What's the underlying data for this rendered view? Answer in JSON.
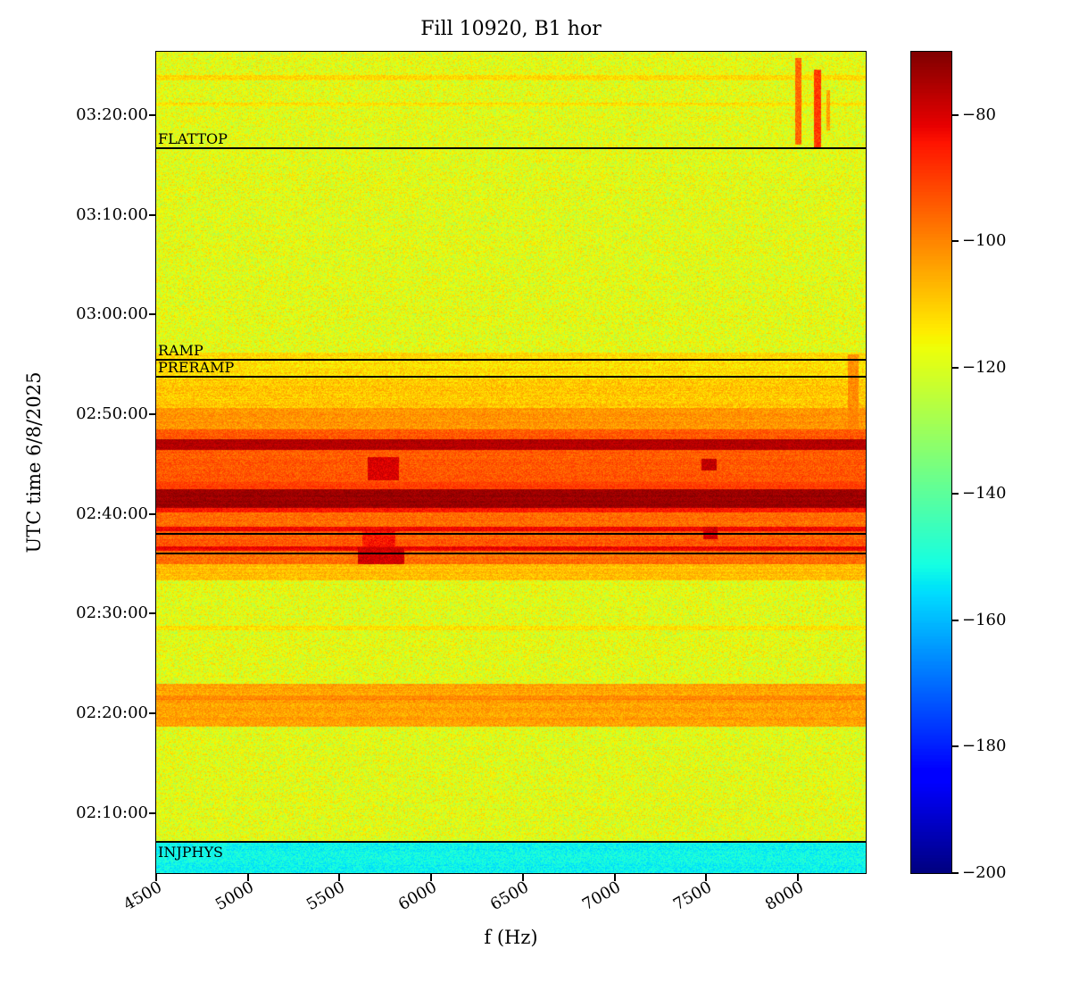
{
  "chart_data": {
    "type": "heatmap",
    "subtype": "spectrogram",
    "title": "Fill 10920, B1 hor",
    "xlabel": "f (Hz)",
    "ylabel": "UTC time 6/8/2025",
    "colormap": "jet",
    "x_axis": {
      "min": 4500,
      "max": 8370,
      "ticks": [
        4500,
        5000,
        5500,
        6000,
        6500,
        7000,
        7500,
        8000
      ]
    },
    "y_axis": {
      "min_time": "02:04:00",
      "max_time": "03:26:20",
      "ticks": [
        "02:10:00",
        "02:20:00",
        "02:30:00",
        "02:40:00",
        "02:50:00",
        "03:00:00",
        "03:10:00",
        "03:20:00"
      ]
    },
    "colorbar": {
      "vmin": -200,
      "vmax": -70,
      "ticks": [
        -80,
        -100,
        -120,
        -140,
        -160,
        -180,
        -200
      ]
    },
    "annotations": [
      {
        "label": "FLATTOP",
        "time": "03:16:40",
        "label_position": "above"
      },
      {
        "label": "RAMP",
        "time": "02:55:30",
        "label_position": "above"
      },
      {
        "label": "PRERAMP",
        "time": "02:53:45",
        "label_position": "above"
      },
      {
        "label": "",
        "time": "02:38:00",
        "label_position": "above"
      },
      {
        "label": "",
        "time": "02:36:00",
        "label_position": "above"
      },
      {
        "label": "INJPHYS",
        "time": "02:07:10",
        "label_position": "below"
      }
    ],
    "bands": [
      {
        "t0": "02:04:00",
        "t1": "03:26:20",
        "db": -119,
        "noise": 9
      },
      {
        "t0": "02:04:00",
        "t1": "02:07:10",
        "db": -152,
        "noise": 5
      },
      {
        "t0": "02:18:40",
        "t1": "02:23:00",
        "db": -104,
        "noise": 5
      },
      {
        "t0": "02:21:20",
        "t1": "02:21:50",
        "db": -100,
        "noise": 4
      },
      {
        "t0": "02:28:20",
        "t1": "02:28:50",
        "db": -112,
        "noise": 5
      },
      {
        "t0": "02:33:20",
        "t1": "02:35:00",
        "db": -108,
        "noise": 5
      },
      {
        "t0": "02:35:00",
        "t1": "02:36:20",
        "db": -97,
        "noise": 5
      },
      {
        "t0": "02:36:20",
        "t1": "02:36:45",
        "db": -82,
        "noise": 3
      },
      {
        "t0": "02:36:45",
        "t1": "02:38:15",
        "db": -94,
        "noise": 5
      },
      {
        "t0": "02:38:15",
        "t1": "02:38:45",
        "db": -82,
        "noise": 3
      },
      {
        "t0": "02:38:45",
        "t1": "02:40:10",
        "db": -97,
        "noise": 5
      },
      {
        "t0": "02:40:10",
        "t1": "02:40:35",
        "db": -86,
        "noise": 4
      },
      {
        "t0": "02:40:35",
        "t1": "02:42:30",
        "db": -73,
        "noise": 3
      },
      {
        "t0": "02:42:30",
        "t1": "02:43:10",
        "db": -90,
        "noise": 4
      },
      {
        "t0": "02:43:10",
        "t1": "02:46:25",
        "db": -94,
        "noise": 5
      },
      {
        "t0": "02:46:25",
        "t1": "02:47:30",
        "db": -76,
        "noise": 3
      },
      {
        "t0": "02:47:30",
        "t1": "02:48:30",
        "db": -94,
        "noise": 5
      },
      {
        "t0": "02:48:30",
        "t1": "02:50:40",
        "db": -102,
        "noise": 5
      },
      {
        "t0": "02:50:40",
        "t1": "02:53:30",
        "db": -109,
        "noise": 6
      },
      {
        "t0": "02:53:30",
        "t1": "02:55:30",
        "db": -112,
        "noise": 6
      },
      {
        "t0": "02:55:30",
        "t1": "02:56:10",
        "db": -111,
        "noise": 5
      },
      {
        "t0": "03:20:50",
        "t1": "03:21:15",
        "db": -113,
        "noise": 5
      },
      {
        "t0": "03:23:30",
        "t1": "03:24:00",
        "db": -112,
        "noise": 5
      }
    ],
    "vertical_features": [
      {
        "f0": 7985,
        "f1": 8015,
        "t0": "03:17:00",
        "t1": "03:25:40",
        "db": -96,
        "noise": 5
      },
      {
        "f0": 8085,
        "f1": 8125,
        "t0": "03:16:40",
        "t1": "03:24:30",
        "db": -90,
        "noise": 5
      },
      {
        "f0": 8155,
        "f1": 8175,
        "t0": "03:18:30",
        "t1": "03:22:30",
        "db": -104,
        "noise": 5
      },
      {
        "f0": 5600,
        "f1": 5850,
        "t0": "02:35:00",
        "t1": "02:36:40",
        "db": -79,
        "noise": 4
      },
      {
        "f0": 5620,
        "f1": 5800,
        "t0": "02:36:45",
        "t1": "02:38:15",
        "db": -85,
        "noise": 5
      },
      {
        "f0": 5650,
        "f1": 5820,
        "t0": "02:43:20",
        "t1": "02:45:40",
        "db": -80,
        "noise": 4
      },
      {
        "f0": 7480,
        "f1": 7560,
        "t0": "02:37:30",
        "t1": "02:38:45",
        "db": -79,
        "noise": 4
      },
      {
        "f0": 7470,
        "f1": 7555,
        "t0": "02:44:20",
        "t1": "02:45:30",
        "db": -77,
        "noise": 4
      },
      {
        "f0": 8270,
        "f1": 8330,
        "t0": "02:48:00",
        "t1": "02:56:00",
        "db": -101,
        "noise": 5
      }
    ]
  }
}
